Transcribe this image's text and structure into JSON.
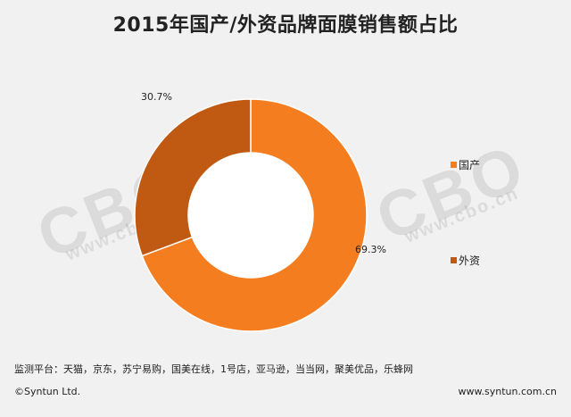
{
  "chart_data": {
    "type": "pie",
    "title": "2015年国产/外资品牌面膜销售额占比",
    "donut": true,
    "slices": [
      {
        "label": "国产",
        "value": 69.3,
        "value_label": "69.3%",
        "color": "#f47d20"
      },
      {
        "label": "外资",
        "value": 30.7,
        "value_label": "30.7%",
        "color": "#c05a12"
      }
    ],
    "legend_position": "right"
  },
  "watermark": {
    "logo": "CBO",
    "url": "www.cbo.cn"
  },
  "footer": {
    "source": "监测平台：天猫，京东，苏宁易购，国美在线，1号店，亚马逊，当当网，聚美优品，乐蜂网",
    "copyright": "©Syntun Ltd.",
    "site": "www.syntun.com.cn"
  }
}
